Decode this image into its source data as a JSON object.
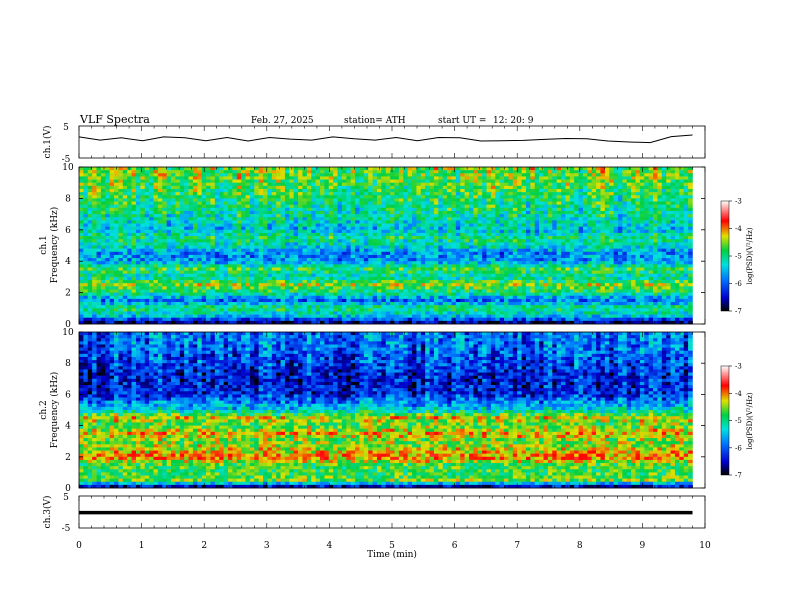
{
  "header": {
    "title": "VLF  Spectra",
    "date": "Feb. 27, 2025",
    "station": "station= ATH",
    "start_label": "start  UT  =",
    "start_time": "12: 20: 9"
  },
  "chart_data": [
    {
      "type": "line",
      "panel": "ch1-waveform",
      "ylabel": "ch.1(V)",
      "yticks": [
        "5",
        "-5"
      ],
      "ylim": [
        -5,
        5
      ],
      "xlim": [
        0,
        10
      ],
      "series": [
        {
          "values": [
            1.6,
            0.6,
            1.3,
            0.4,
            1.6,
            1.3,
            0.4,
            1.4,
            0.3,
            1.4,
            0.9,
            0.6,
            1.6,
            1.0,
            0.6,
            1.4,
            0.4,
            1.4,
            1.3,
            0.3,
            0.4,
            0.5,
            0.8,
            1.1,
            1.0,
            0.3,
            0.0,
            -0.2,
            1.7,
            2.2
          ]
        }
      ],
      "data_extent_min": 9.8,
      "line_color": "#000000"
    },
    {
      "type": "heatmap",
      "panel": "ch1-spectrogram",
      "ylabel": "ch.1\nFrequency (kHz)",
      "yticks": [
        "0",
        "2",
        "4",
        "6",
        "8",
        "10"
      ],
      "ylim": [
        0,
        10
      ],
      "xlim": [
        0,
        10
      ],
      "colorbar": {
        "label": "log(PSD)(V²/Hz)",
        "ticks": [
          "-3",
          "-4",
          "-5",
          "-6",
          "-7"
        ],
        "range": [
          -7,
          -3
        ]
      },
      "band_profile_log_psd": [
        [
          0.0,
          -6.9
        ],
        [
          0.5,
          -5.6
        ],
        [
          1.0,
          -5.1
        ],
        [
          1.5,
          -6.0
        ],
        [
          2.0,
          -5.2
        ],
        [
          2.5,
          -4.7
        ],
        [
          3.0,
          -5.4
        ],
        [
          3.5,
          -5.0
        ],
        [
          4.0,
          -5.8
        ],
        [
          4.5,
          -5.9
        ],
        [
          5.0,
          -5.4
        ],
        [
          5.5,
          -5.2
        ],
        [
          6.0,
          -5.6
        ],
        [
          7.0,
          -5.3
        ],
        [
          8.0,
          -5.1
        ],
        [
          9.0,
          -4.9
        ],
        [
          10.0,
          -4.8
        ]
      ]
    },
    {
      "type": "heatmap",
      "panel": "ch2-spectrogram",
      "ylabel": "ch.2\nFrequency (kHz)",
      "yticks": [
        "0",
        "2",
        "4",
        "6",
        "8",
        "10"
      ],
      "ylim": [
        0,
        10
      ],
      "xlim": [
        0,
        10
      ],
      "colorbar": {
        "label": "log(PSD)(V²/Hz)",
        "ticks": [
          "-3",
          "-4",
          "-5",
          "-6",
          "-7"
        ],
        "range": [
          -7,
          -3
        ]
      },
      "band_profile_log_psd": [
        [
          0.0,
          -6.9
        ],
        [
          0.5,
          -4.8
        ],
        [
          1.0,
          -5.0
        ],
        [
          1.5,
          -4.9
        ],
        [
          2.0,
          -4.2
        ],
        [
          2.5,
          -4.6
        ],
        [
          3.0,
          -4.8
        ],
        [
          3.5,
          -4.4
        ],
        [
          4.0,
          -4.9
        ],
        [
          4.5,
          -4.5
        ],
        [
          5.0,
          -5.5
        ],
        [
          6.0,
          -6.3
        ],
        [
          7.0,
          -6.4
        ],
        [
          8.0,
          -6.2
        ],
        [
          9.0,
          -6.0
        ],
        [
          10.0,
          -6.0
        ]
      ]
    },
    {
      "type": "line",
      "panel": "ch3-waveform",
      "ylabel": "ch.3(V)",
      "yticks": [
        "5",
        "-5"
      ],
      "ylim": [
        -5,
        5
      ],
      "xlim": [
        0,
        10
      ],
      "series": [
        {
          "values": [
            -0.2,
            -0.2
          ]
        }
      ],
      "data_extent_min": 9.8,
      "line_color": "#000000"
    }
  ],
  "xaxis": {
    "label": "Time  (min)",
    "ticks": [
      "0",
      "1",
      "2",
      "3",
      "4",
      "5",
      "6",
      "7",
      "8",
      "9",
      "10"
    ]
  }
}
